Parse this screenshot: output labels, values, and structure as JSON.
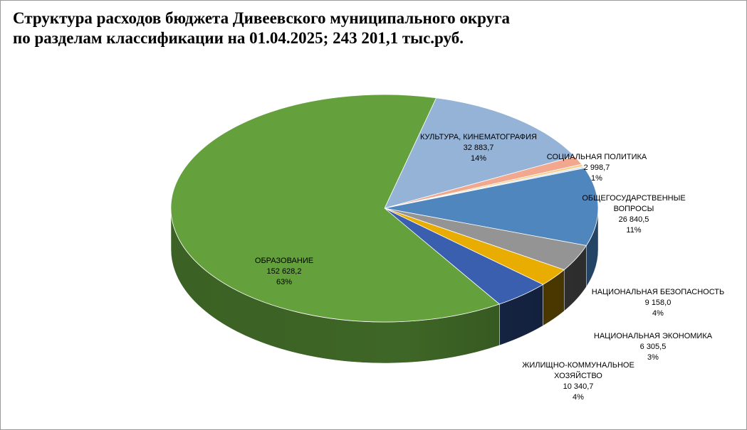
{
  "chart_data": {
    "type": "pie",
    "title_line1": "Структура расходов бюджета Дивеевского муниципального округа",
    "title_line2": "по разделам классификации на 01.04.2025; 243 201,1 тыс.руб.",
    "slices": [
      {
        "key": "culture",
        "label": [
          "КУЛЬТУРА, КИНЕМАТОГРАФИЯ"
        ],
        "value_text": "32 883,7",
        "pct": "14%",
        "value": 32883.7,
        "color": "#95b3d7",
        "side": "#6b84a3"
      },
      {
        "key": "social",
        "label": [
          "СОЦИАЛЬНАЯ ПОЛИТИКА"
        ],
        "value_text": "2 998,7",
        "pct": "1%",
        "value": 2998.7,
        "color": "#f2a88f",
        "side": "#b8775f"
      },
      {
        "key": "small1",
        "label": [],
        "value_text": "",
        "pct": "",
        "value": 800,
        "color": "#f8cf8a",
        "side": "#bf9a5e"
      },
      {
        "key": "small2",
        "label": [],
        "value_text": "",
        "pct": "",
        "value": 600,
        "color": "#d6e4f5",
        "side": "#9fb0c4"
      },
      {
        "key": "general",
        "label": [
          "ОБЩЕГОСУДАРСТВЕННЫЕ",
          "ВОПРОСЫ"
        ],
        "value_text": "26 840,5",
        "pct": "11%",
        "value": 26840.5,
        "color": "#4f86bd",
        "side": "#2f5a86"
      },
      {
        "key": "security",
        "label": [
          "НАЦИОНАЛЬНАЯ БЕЗОПАСНОСТЬ"
        ],
        "value_text": "9 158,0",
        "pct": "4%",
        "value": 9158.0,
        "color": "#949494",
        "side": "#3a3a3a"
      },
      {
        "key": "economy",
        "label": [
          "НАЦИОНАЛЬНАЯ ЭКОНОМИКА"
        ],
        "value_text": "6 305,5",
        "pct": "3%",
        "value": 6305.5,
        "color": "#e8ad00",
        "side": "#5a4400"
      },
      {
        "key": "housing",
        "label": [
          "ЖИЛИЩНО-КОММУНАЛЬНОЕ",
          "ХОЗЯЙСТВО"
        ],
        "value_text": "10 340,7",
        "pct": "4%",
        "value": 10340.7,
        "color": "#3a5faf",
        "side": "#17284a"
      },
      {
        "key": "education",
        "label": [
          "ОБРАЗОВАНИЕ"
        ],
        "value_text": "152 628,2",
        "pct": "63%",
        "value": 152628.2,
        "color": "#64a03c",
        "side": "#3e6626"
      }
    ]
  }
}
